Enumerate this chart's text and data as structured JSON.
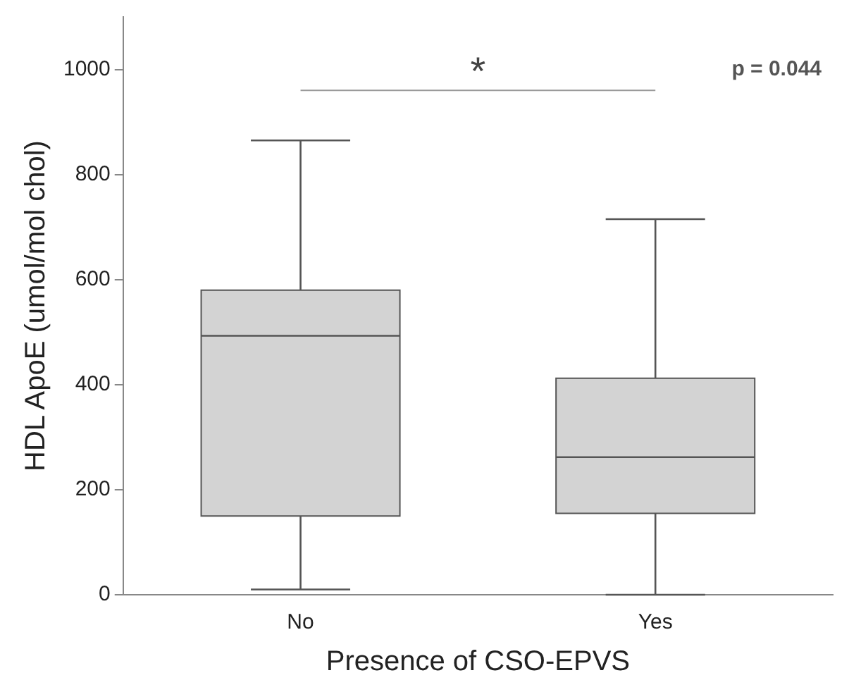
{
  "chart_data": {
    "type": "box",
    "xlabel": "Presence of CSO-EPVS",
    "ylabel": "HDL ApoE (umol/mol chol)",
    "categories": [
      "No",
      "Yes"
    ],
    "boxes": [
      {
        "low": 10,
        "q1": 150,
        "median": 493,
        "q3": 580,
        "high": 865
      },
      {
        "low": 0,
        "q1": 155,
        "median": 262,
        "q3": 412,
        "high": 715
      }
    ],
    "color": "#d3d3d3",
    "ylim": [
      0,
      1100
    ],
    "yticks": [
      0,
      200,
      400,
      600,
      800,
      1000
    ],
    "grid": false,
    "legend": false,
    "annotations": [
      "*",
      "p = 0.044"
    ]
  }
}
